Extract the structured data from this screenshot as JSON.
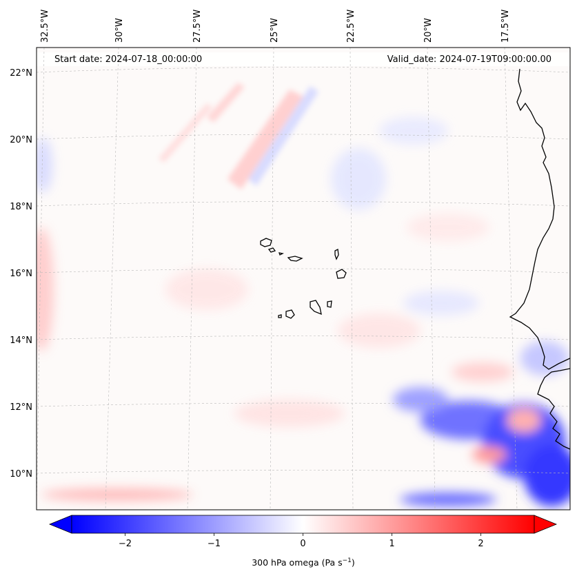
{
  "map": {
    "start_date": "Start date: 2024-07-18_00:00:00",
    "valid_date": "Valid_date: 2024-07-19T09:00:00.00",
    "lon_labels": [
      "32.5°W",
      "30°W",
      "27.5°W",
      "25°W",
      "22.5°W",
      "20°W",
      "17.5°W"
    ],
    "lat_labels": [
      "22°N",
      "20°N",
      "18°N",
      "16°N",
      "14°N",
      "12°N",
      "10°N"
    ],
    "field": "300 hPa omega",
    "colormap": "bwr",
    "colors": {
      "negative": "#0000ff",
      "zero": "#ffffff",
      "positive": "#ff0000",
      "coastline": "#000000",
      "gridline": "#b0b0b0"
    }
  },
  "colorbar": {
    "label_main": "300 hPa omega (Pa s",
    "label_exp": "−1",
    "label_end": ")",
    "ticks": [
      "−2",
      "−1",
      "0",
      "1",
      "2"
    ],
    "tick_values": [
      -2,
      -1,
      0,
      1,
      2
    ],
    "range": [
      -2.6,
      2.6
    ],
    "extend": "both"
  }
}
